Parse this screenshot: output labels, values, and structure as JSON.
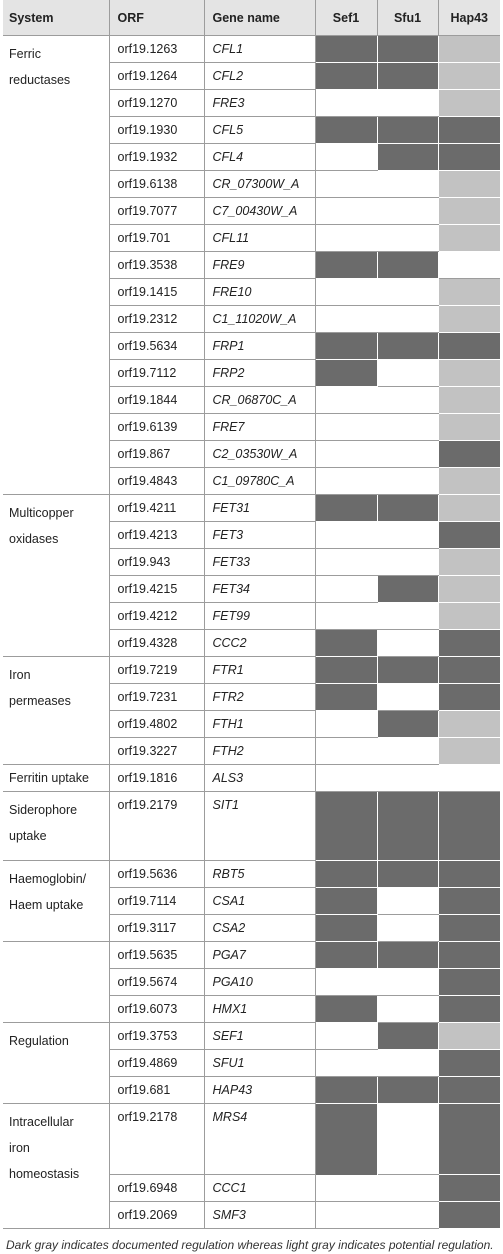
{
  "headers": [
    "System",
    "ORF",
    "Gene name",
    "Sef1",
    "Sfu1",
    "Hap43"
  ],
  "rows": [
    {
      "system": "Ferric reductases",
      "orf": "orf19.1263",
      "gene": "CFL1",
      "sef1": "dark",
      "sfu1": "dark",
      "hap43": "light"
    },
    {
      "system": "",
      "orf": "orf19.1264",
      "gene": "CFL2",
      "sef1": "dark",
      "sfu1": "dark",
      "hap43": "light"
    },
    {
      "system": "",
      "orf": "orf19.1270",
      "gene": "FRE3",
      "sef1": "none",
      "sfu1": "none",
      "hap43": "light"
    },
    {
      "system": "",
      "orf": "orf19.1930",
      "gene": "CFL5",
      "sef1": "dark",
      "sfu1": "dark",
      "hap43": "dark"
    },
    {
      "system": "",
      "orf": "orf19.1932",
      "gene": "CFL4",
      "sef1": "none",
      "sfu1": "dark",
      "hap43": "dark"
    },
    {
      "system": "",
      "orf": "orf19.6138",
      "gene": "CR_07300W_A",
      "sef1": "none",
      "sfu1": "none",
      "hap43": "light"
    },
    {
      "system": "",
      "orf": "orf19.7077",
      "gene": "C7_00430W_A",
      "sef1": "none",
      "sfu1": "none",
      "hap43": "light"
    },
    {
      "system": "",
      "orf": "orf19.701",
      "gene": "CFL11",
      "sef1": "none",
      "sfu1": "none",
      "hap43": "light"
    },
    {
      "system": "",
      "orf": "orf19.3538",
      "gene": "FRE9",
      "sef1": "dark",
      "sfu1": "dark",
      "hap43": "none"
    },
    {
      "system": "",
      "orf": "orf19.1415",
      "gene": "FRE10",
      "sef1": "none",
      "sfu1": "none",
      "hap43": "light"
    },
    {
      "system": "",
      "orf": "orf19.2312",
      "gene": "C1_11020W_A",
      "sef1": "none",
      "sfu1": "none",
      "hap43": "light"
    },
    {
      "system": "",
      "orf": "orf19.5634",
      "gene": "FRP1",
      "sef1": "dark",
      "sfu1": "dark",
      "hap43": "dark"
    },
    {
      "system": "",
      "orf": "orf19.7112",
      "gene": "FRP2",
      "sef1": "dark",
      "sfu1": "none",
      "hap43": "light"
    },
    {
      "system": "",
      "orf": "orf19.1844",
      "gene": "CR_06870C_A",
      "sef1": "none",
      "sfu1": "none",
      "hap43": "light"
    },
    {
      "system": "",
      "orf": "orf19.6139",
      "gene": "FRE7",
      "sef1": "none",
      "sfu1": "none",
      "hap43": "light"
    },
    {
      "system": "",
      "orf": "orf19.867",
      "gene": "C2_03530W_A",
      "sef1": "none",
      "sfu1": "none",
      "hap43": "dark"
    },
    {
      "system": "",
      "orf": "orf19.4843",
      "gene": "C1_09780C_A",
      "sef1": "none",
      "sfu1": "none",
      "hap43": "light"
    },
    {
      "system": "Multicopper oxidases",
      "orf": "orf19.4211",
      "gene": "FET31",
      "sef1": "dark",
      "sfu1": "dark",
      "hap43": "light"
    },
    {
      "system": "",
      "orf": "orf19.4213",
      "gene": "FET3",
      "sef1": "none",
      "sfu1": "none",
      "hap43": "dark"
    },
    {
      "system": "",
      "orf": "orf19.943",
      "gene": "FET33",
      "sef1": "none",
      "sfu1": "none",
      "hap43": "light"
    },
    {
      "system": "",
      "orf": "orf19.4215",
      "gene": "FET34",
      "sef1": "none",
      "sfu1": "dark",
      "hap43": "light"
    },
    {
      "system": "",
      "orf": "orf19.4212",
      "gene": "FET99",
      "sef1": "none",
      "sfu1": "none",
      "hap43": "light"
    },
    {
      "system": "",
      "orf": "orf19.4328",
      "gene": "CCC2",
      "sef1": "dark",
      "sfu1": "none",
      "hap43": "dark"
    },
    {
      "system": "Iron permeases",
      "orf": "orf19.7219",
      "gene": "FTR1",
      "sef1": "dark",
      "sfu1": "dark",
      "hap43": "dark"
    },
    {
      "system": "",
      "orf": "orf19.7231",
      "gene": "FTR2",
      "sef1": "dark",
      "sfu1": "none",
      "hap43": "dark"
    },
    {
      "system": "",
      "orf": "orf19.4802",
      "gene": "FTH1",
      "sef1": "none",
      "sfu1": "dark",
      "hap43": "light"
    },
    {
      "system": "",
      "orf": "orf19.3227",
      "gene": "FTH2",
      "sef1": "none",
      "sfu1": "none",
      "hap43": "light"
    },
    {
      "system": "Ferritin uptake",
      "orf": "orf19.1816",
      "gene": "ALS3",
      "sef1": "none",
      "sfu1": "none",
      "hap43": "none"
    },
    {
      "system": "Siderophore uptake",
      "orf": "orf19.2179",
      "gene": "SIT1",
      "sef1": "dark",
      "sfu1": "dark",
      "hap43": "dark"
    },
    {
      "system": "Haemoglobin/ Haem uptake",
      "orf": "orf19.5636",
      "gene": "RBT5",
      "sef1": "dark",
      "sfu1": "dark",
      "hap43": "dark"
    },
    {
      "system": "",
      "orf": "orf19.7114",
      "gene": "CSA1",
      "sef1": "dark",
      "sfu1": "none",
      "hap43": "dark"
    },
    {
      "system": "",
      "orf": "orf19.3117",
      "gene": "CSA2",
      "sef1": "dark",
      "sfu1": "none",
      "hap43": "dark"
    },
    {
      "system": "",
      "orf": "orf19.5635",
      "gene": "PGA7",
      "sef1": "dark",
      "sfu1": "dark",
      "hap43": "dark"
    },
    {
      "system": "",
      "orf": "orf19.5674",
      "gene": "PGA10",
      "sef1": "none",
      "sfu1": "none",
      "hap43": "dark"
    },
    {
      "system": "",
      "orf": "orf19.6073",
      "gene": "HMX1",
      "sef1": "dark",
      "sfu1": "none",
      "hap43": "dark"
    },
    {
      "system": "Regulation",
      "orf": "orf19.3753",
      "gene": "SEF1",
      "sef1": "none",
      "sfu1": "dark",
      "hap43": "light"
    },
    {
      "system": "",
      "orf": "orf19.4869",
      "gene": "SFU1",
      "sef1": "none",
      "sfu1": "none",
      "hap43": "dark"
    },
    {
      "system": "",
      "orf": "orf19.681",
      "gene": "HAP43",
      "sef1": "dark",
      "sfu1": "dark",
      "hap43": "dark"
    },
    {
      "system": "Intracellular iron homeostasis",
      "orf": "orf19.2178",
      "gene": "MRS4",
      "sef1": "dark",
      "sfu1": "none",
      "hap43": "dark"
    },
    {
      "system": "",
      "orf": "orf19.6948",
      "gene": "CCC1",
      "sef1": "none",
      "sfu1": "none",
      "hap43": "dark"
    },
    {
      "system": "",
      "orf": "orf19.2069",
      "gene": "SMF3",
      "sef1": "none",
      "sfu1": "none",
      "hap43": "dark"
    }
  ],
  "systems_display": {
    "ferric": [
      "Ferric",
      "reductases"
    ],
    "multicopper": [
      "Multicopper",
      "oxidases"
    ],
    "iron": [
      "Iron",
      "permeases"
    ],
    "ferritin": "Ferritin uptake",
    "siderophore": [
      "Siderophore",
      "uptake"
    ],
    "haemo": [
      "Haemoglobin/",
      "Haem uptake"
    ],
    "regulation": "Regulation",
    "intracellular": [
      "Intracellular",
      "iron",
      "homeostasis"
    ]
  },
  "footnote": "Dark gray indicates documented regulation whereas light gray indicates potential regulation.",
  "colors": {
    "dark": "#6b6b6b",
    "light": "#c2c2c2",
    "none": "#ffffff",
    "header_bg": "#e4e4e4"
  }
}
